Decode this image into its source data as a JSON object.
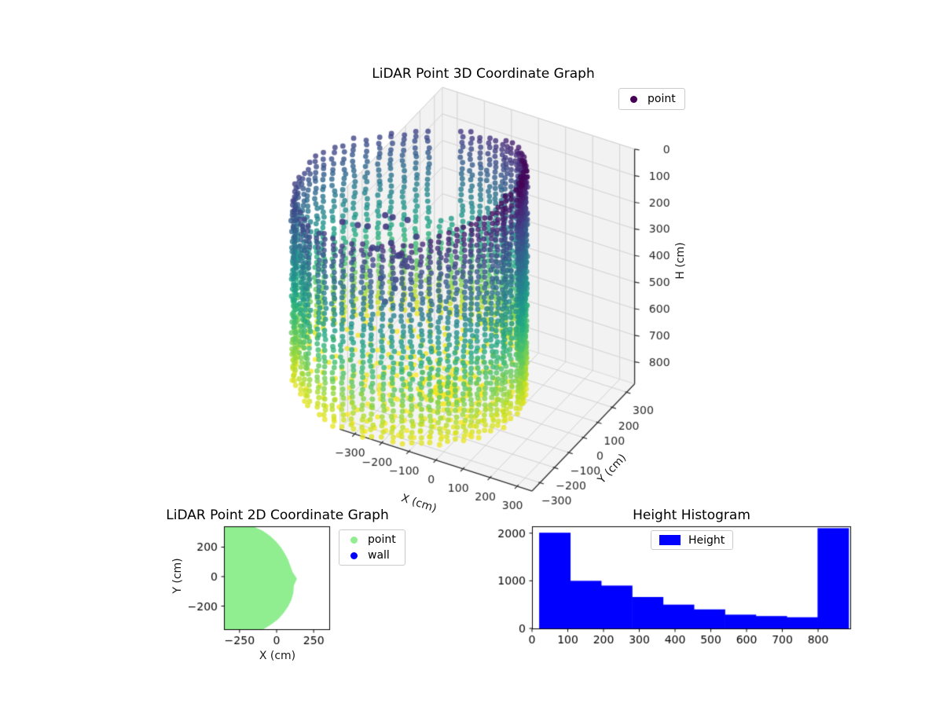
{
  "figure": {
    "background": "#ffffff"
  },
  "colors": {
    "viridis_stops": [
      "#440154",
      "#482475",
      "#414487",
      "#355f8d",
      "#2a788e",
      "#21918c",
      "#22a884",
      "#44bf70",
      "#7ad151",
      "#bddf26",
      "#fde725"
    ],
    "pane_fill": "#f2f2f2",
    "pane_grid": "#d2d2d2",
    "axis_line": "#2e2e2e",
    "tick_text": "#262626"
  },
  "chart_data": [
    {
      "type": "scatter3d",
      "title": "LiDAR Point 3D Coordinate Graph",
      "xlabel": "X (cm)",
      "ylabel": "Y (cm)",
      "zlabel": "H (cm)",
      "xticks": [
        -300,
        -200,
        -100,
        0,
        100,
        200,
        300
      ],
      "yticks": [
        -300,
        -200,
        -100,
        0,
        100,
        200,
        300
      ],
      "hticks": [
        0,
        100,
        200,
        300,
        400,
        500,
        600,
        700,
        800
      ],
      "xlim": [
        -355,
        355
      ],
      "ylim": [
        -355,
        355
      ],
      "hlim": [
        0,
        883
      ],
      "h_axis_inverted": true,
      "colormap": "viridis",
      "legend": [
        {
          "label": "point",
          "color": "#440154"
        }
      ],
      "point_cloud": {
        "boundary": {
          "center": [
            -150,
            -15
          ],
          "theta_step_deg": 10,
          "radius_cm": [
            287,
            262,
            258,
            262,
            268,
            278,
            292,
            310,
            330,
            352,
            375,
            398,
            420,
            442,
            462,
            480,
            494,
            503,
            506,
            504,
            497,
            485,
            468,
            448,
            425,
            400,
            380,
            362,
            348,
            330,
            318,
            305,
            295,
            288,
            280,
            270
          ]
        },
        "wall": {
          "columns": 72,
          "h_step_cm": 20,
          "h_bottom_cm": 858,
          "rim_min_deg": 20,
          "rim_amp_cm": 90,
          "rim_back_extra": 0.18,
          "gap_theta_deg": [
            112,
            122
          ],
          "gap_below_h": 480
        },
        "floor": {
          "h_cm": 852,
          "radial_step_cm": 46,
          "theta_step_deg": 9
        },
        "noise_points": [
          [
            -350,
            -50,
            250
          ],
          [
            -310,
            30,
            300
          ],
          [
            -420,
            -40,
            320
          ],
          [
            -260,
            -120,
            330
          ],
          [
            -370,
            -100,
            350
          ],
          [
            -300,
            -60,
            380
          ],
          [
            -390,
            -30,
            400
          ],
          [
            -330,
            10,
            430
          ],
          [
            -350,
            -80,
            470
          ],
          [
            -320,
            -40,
            520
          ],
          [
            -340,
            -70,
            560
          ],
          [
            -280,
            -140,
            280
          ],
          [
            -240,
            -40,
            300
          ],
          [
            -430,
            -90,
            290
          ],
          [
            -460,
            -140,
            260
          ],
          [
            -200,
            -180,
            320
          ],
          [
            -310,
            -120,
            240
          ],
          [
            -360,
            20,
            300
          ],
          [
            -290,
            -90,
            450
          ],
          [
            -250,
            -100,
            360
          ]
        ]
      }
    },
    {
      "type": "scatter",
      "title": "LiDAR Point 2D Coordinate Graph",
      "xlabel": "X (cm)",
      "ylabel": "Y (cm)",
      "xticks": [
        -250,
        0,
        250
      ],
      "yticks": [
        -200,
        0,
        200
      ],
      "xlim": [
        -355,
        355
      ],
      "ylim": [
        -357,
        341
      ],
      "region_fill": "#90ee90",
      "legend": [
        {
          "label": "point",
          "color": "#90ee90"
        },
        {
          "label": "wall",
          "color": "#0000ff"
        }
      ]
    },
    {
      "type": "histogram",
      "title": "Height Histogram",
      "color": "#0000ff",
      "legend": [
        {
          "label": "Height",
          "color": "#0000ff"
        }
      ],
      "bin_start": 20,
      "bin_width": 86.5,
      "counts": [
        2010,
        1000,
        900,
        660,
        500,
        400,
        290,
        260,
        235,
        2105
      ],
      "xticks": [
        0,
        100,
        200,
        300,
        400,
        500,
        600,
        700,
        800
      ],
      "yticks": [
        0,
        1000,
        2000
      ],
      "xlim": [
        0,
        890
      ],
      "ylim": [
        0,
        2144
      ]
    }
  ]
}
